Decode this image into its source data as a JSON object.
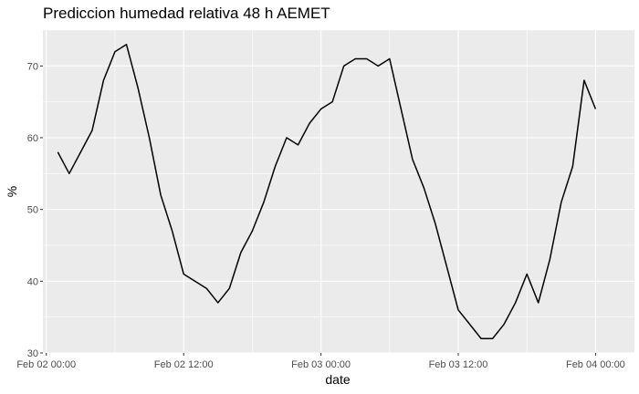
{
  "chart_data": {
    "type": "line",
    "title": "Prediccion humedad relativa 48 h AEMET",
    "xlabel": "date",
    "ylabel": "%",
    "x_unit": "hours",
    "x_start": "Feb 02 00:00",
    "xlim": [
      "Feb 02 00:00",
      "Feb 04 00:00"
    ],
    "ylim": [
      30,
      75
    ],
    "x_ticks": [
      "Feb 02 00:00",
      "Feb 02 12:00",
      "Feb 03 00:00",
      "Feb 03 12:00",
      "Feb 04 00:00"
    ],
    "y_ticks": [
      30,
      40,
      50,
      60,
      70
    ],
    "grid": true,
    "background": "#ebebeb",
    "grid_color": "#ffffff",
    "line_color": "#000000",
    "x": [
      "Feb 02 01:00",
      "Feb 02 02:00",
      "Feb 02 03:00",
      "Feb 02 04:00",
      "Feb 02 05:00",
      "Feb 02 06:00",
      "Feb 02 07:00",
      "Feb 02 08:00",
      "Feb 02 09:00",
      "Feb 02 10:00",
      "Feb 02 11:00",
      "Feb 02 12:00",
      "Feb 02 13:00",
      "Feb 02 14:00",
      "Feb 02 15:00",
      "Feb 02 16:00",
      "Feb 02 17:00",
      "Feb 02 18:00",
      "Feb 02 19:00",
      "Feb 02 20:00",
      "Feb 02 21:00",
      "Feb 02 22:00",
      "Feb 02 23:00",
      "Feb 03 00:00",
      "Feb 03 01:00",
      "Feb 03 02:00",
      "Feb 03 03:00",
      "Feb 03 04:00",
      "Feb 03 05:00",
      "Feb 03 06:00",
      "Feb 03 07:00",
      "Feb 03 08:00",
      "Feb 03 09:00",
      "Feb 03 10:00",
      "Feb 03 11:00",
      "Feb 03 12:00",
      "Feb 03 13:00",
      "Feb 03 14:00",
      "Feb 03 15:00",
      "Feb 03 16:00",
      "Feb 03 17:00",
      "Feb 03 18:00",
      "Feb 03 19:00",
      "Feb 03 20:00",
      "Feb 03 21:00",
      "Feb 03 22:00",
      "Feb 03 23:00",
      "Feb 04 00:00"
    ],
    "values": [
      58,
      55,
      58,
      61,
      68,
      72,
      73,
      67,
      60,
      52,
      47,
      41,
      40,
      39,
      37,
      39,
      44,
      47,
      51,
      56,
      60,
      59,
      62,
      64,
      65,
      70,
      71,
      71,
      70,
      71,
      64,
      57,
      53,
      48,
      42,
      36,
      34,
      32,
      32,
      34,
      37,
      41,
      37,
      43,
      51,
      56,
      68,
      64
    ]
  }
}
